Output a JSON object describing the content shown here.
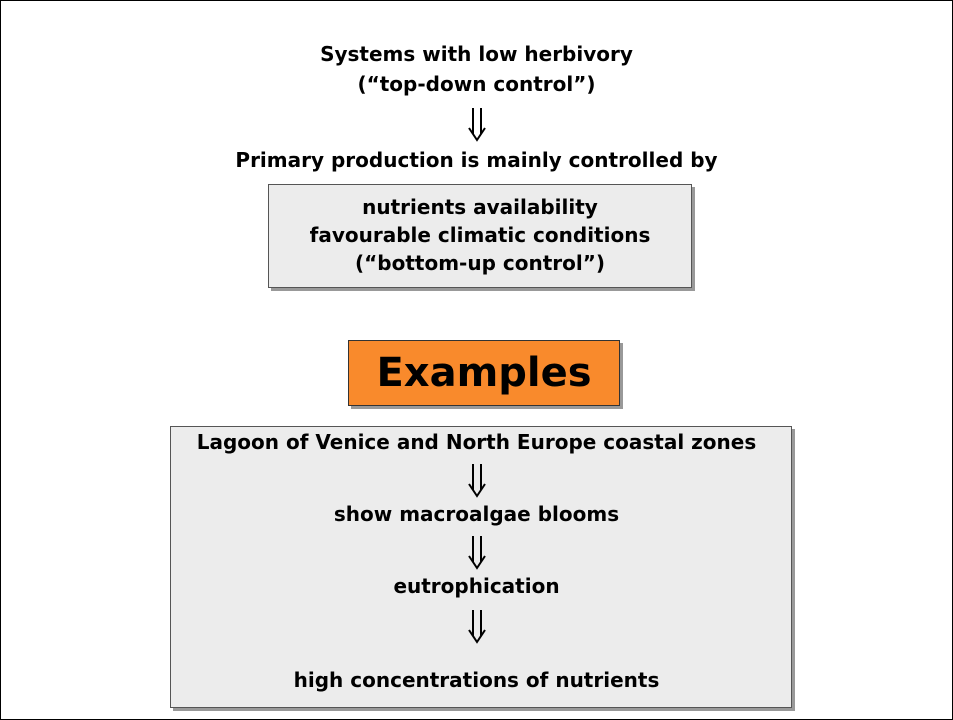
{
  "top": {
    "line1": "Systems with low herbivory",
    "line2": "(“top-down control”)"
  },
  "middle": "Primary production is mainly controlled by",
  "box": [
    "nutrients availability",
    "favourable climatic conditions",
    "(“bottom-up control”)"
  ],
  "examples_label": "Examples",
  "examples": [
    "Lagoon of Venice and North Europe coastal zones",
    "show macroalgae blooms",
    "eutrophication",
    "high concentrations of nutrients"
  ]
}
